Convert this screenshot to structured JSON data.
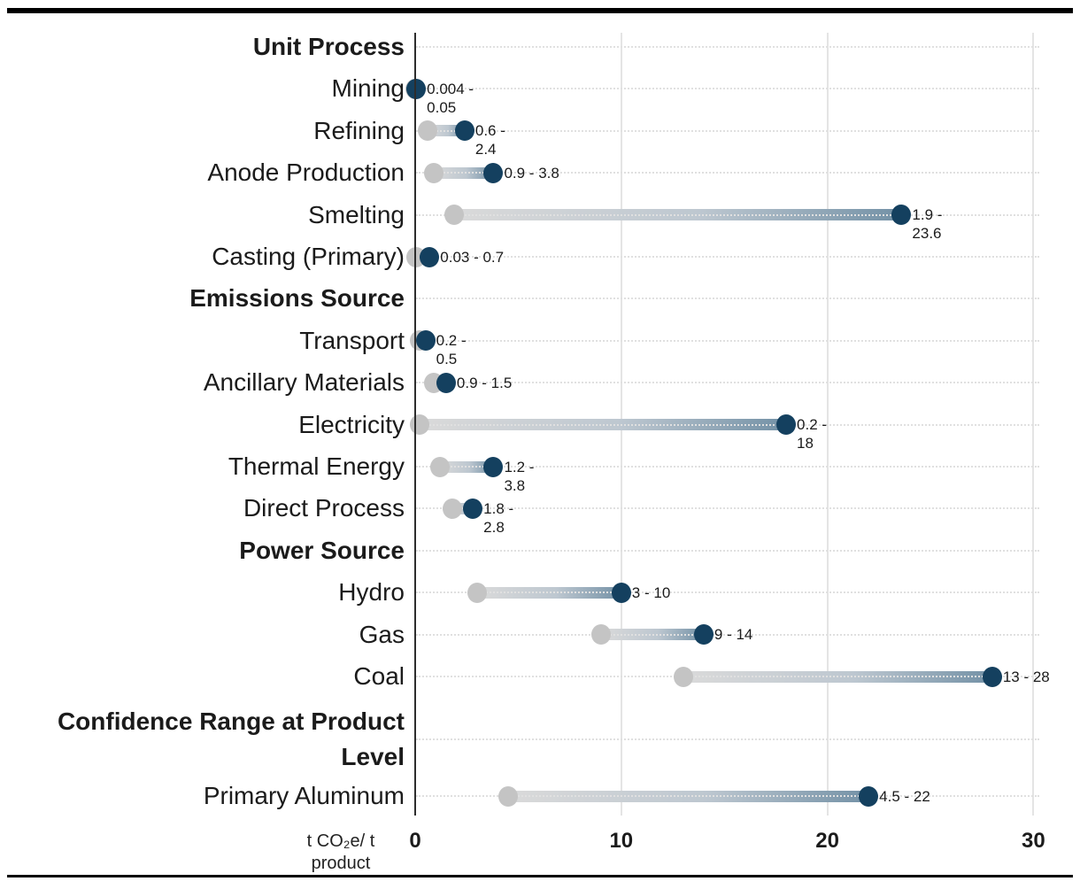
{
  "page": {
    "background": "#ffffff"
  },
  "chart_data": {
    "type": "dumbbell-range",
    "orientation": "horizontal",
    "xlabel": "t CO₂e/ t product",
    "xlabel_lines": [
      "t CO₂e/ t",
      "product"
    ],
    "x_ticks": [
      "0",
      "10",
      "20",
      "30"
    ],
    "x_tick_values": [
      0,
      10,
      20,
      30
    ],
    "xlim": [
      0,
      30.5
    ],
    "grid": {
      "vertical_at": [
        10,
        20,
        30
      ],
      "row_dotted": true,
      "legend": "none"
    },
    "colors": {
      "min_dot": "#c4c4c4",
      "max_dot": "#14405f",
      "bar_light": "#dadada",
      "bar_dark": "#7391a6",
      "axis": "#2d2d2d",
      "gridline": "#e2e2e2",
      "text": "#1b1b1b"
    },
    "rows": [
      {
        "type": "header",
        "label": "Unit Process"
      },
      {
        "type": "item",
        "label": "Mining",
        "min": 0.004,
        "max": 0.05,
        "range_label_lines": [
          "0.004 -",
          "0.05"
        ]
      },
      {
        "type": "item",
        "label": "Refining",
        "min": 0.6,
        "max": 2.4,
        "range_label_lines": [
          "0.6 -",
          "2.4"
        ]
      },
      {
        "type": "item",
        "label": "Anode Production",
        "min": 0.9,
        "max": 3.8,
        "range_label_lines": [
          "0.9 - 3.8"
        ]
      },
      {
        "type": "item",
        "label": "Smelting",
        "min": 1.9,
        "max": 23.6,
        "range_label_lines": [
          "1.9 -",
          "23.6"
        ]
      },
      {
        "type": "item",
        "label": "Casting (Primary)",
        "min": 0.03,
        "max": 0.7,
        "range_label_lines": [
          "0.03 - 0.7"
        ]
      },
      {
        "type": "header",
        "label": "Emissions Source"
      },
      {
        "type": "item",
        "label": "Transport",
        "min": 0.2,
        "max": 0.5,
        "range_label_lines": [
          "0.2 -",
          "0.5"
        ]
      },
      {
        "type": "item",
        "label": "Ancillary Materials",
        "min": 0.9,
        "max": 1.5,
        "range_label_lines": [
          "0.9 - 1.5"
        ]
      },
      {
        "type": "item",
        "label": "Electricity",
        "min": 0.2,
        "max": 18,
        "range_label_lines": [
          "0.2 -",
          "18"
        ]
      },
      {
        "type": "item",
        "label": "Thermal Energy",
        "min": 1.2,
        "max": 3.8,
        "range_label_lines": [
          "1.2 -",
          "3.8"
        ]
      },
      {
        "type": "item",
        "label": "Direct Process",
        "min": 1.8,
        "max": 2.8,
        "range_label_lines": [
          "1.8 -",
          "2.8"
        ]
      },
      {
        "type": "header",
        "label": "Power Source"
      },
      {
        "type": "item",
        "label": "Hydro",
        "min": 3,
        "max": 10,
        "range_label_lines": [
          "3 - 10"
        ]
      },
      {
        "type": "item",
        "label": "Gas",
        "min": 9,
        "max": 14,
        "range_label_lines": [
          "9 - 14"
        ]
      },
      {
        "type": "item",
        "label": "Coal",
        "min": 13,
        "max": 28,
        "range_label_lines": [
          "13 - 28"
        ]
      },
      {
        "type": "header",
        "label": "Confidence Range at Product Level",
        "label_lines": [
          "Confidence Range at Product",
          "Level"
        ]
      },
      {
        "type": "item",
        "label": "Primary Aluminum",
        "min": 4.5,
        "max": 22,
        "range_label_lines": [
          "4.5 - 22"
        ]
      }
    ]
  }
}
